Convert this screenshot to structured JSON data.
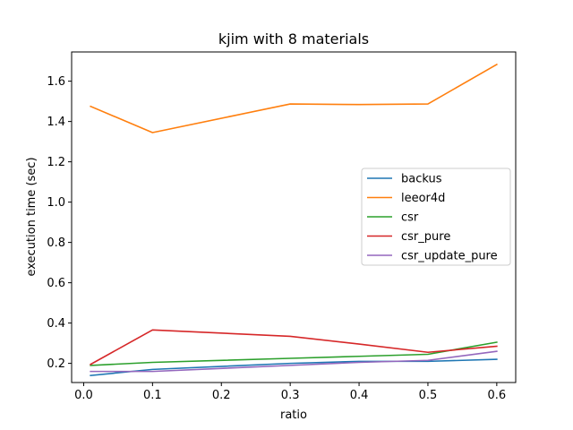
{
  "chart_data": {
    "type": "line",
    "title": "kjim with 8 materials",
    "xlabel": "ratio",
    "ylabel": "execution time (sec)",
    "xlim": [
      -0.0175,
      0.6275
    ],
    "ylim": [
      0.105,
      1.745
    ],
    "xticks": [
      0.0,
      0.1,
      0.2,
      0.3,
      0.4,
      0.5,
      0.6
    ],
    "xtick_labels": [
      "0.0",
      "0.1",
      "0.2",
      "0.3",
      "0.4",
      "0.5",
      "0.6"
    ],
    "yticks": [
      0.2,
      0.4,
      0.6,
      0.8,
      1.0,
      1.2,
      1.4,
      1.6
    ],
    "ytick_labels": [
      "0.2",
      "0.4",
      "0.6",
      "0.8",
      "1.0",
      "1.2",
      "1.4",
      "1.6"
    ],
    "x": [
      0.01,
      0.1,
      0.3,
      0.4,
      0.5,
      0.6
    ],
    "grid": false,
    "legend_position": "center-right",
    "series": [
      {
        "name": "backus",
        "color": "#1f77b4",
        "values": [
          0.14,
          0.17,
          0.2,
          0.21,
          0.21,
          0.22
        ]
      },
      {
        "name": "leeor4d",
        "color": "#ff7f0e",
        "values": [
          1.475,
          1.345,
          1.487,
          1.484,
          1.487,
          1.683
        ]
      },
      {
        "name": "csr",
        "color": "#2ca02c",
        "values": [
          0.19,
          0.205,
          0.225,
          0.235,
          0.245,
          0.305
        ]
      },
      {
        "name": "csr_pure",
        "color": "#d62728",
        "values": [
          0.195,
          0.366,
          0.334,
          0.296,
          0.255,
          0.285
        ]
      },
      {
        "name": "csr_update_pure",
        "color": "#9467bd",
        "values": [
          0.16,
          0.16,
          0.19,
          0.205,
          0.215,
          0.26
        ]
      }
    ]
  }
}
